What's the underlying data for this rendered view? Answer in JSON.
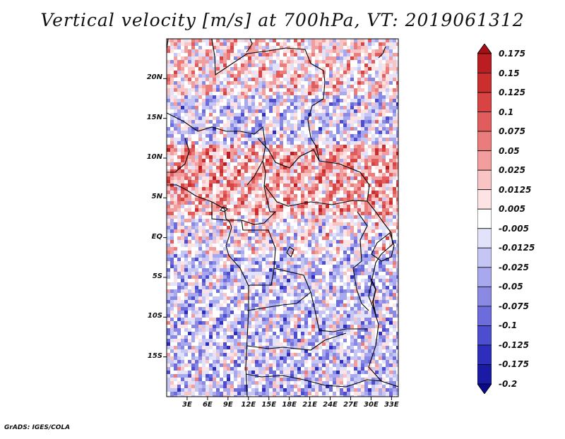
{
  "title": "Vertical velocity [m/s] at 700hPa, VT: 2019061312",
  "credit": "GrADS: IGES/COLA",
  "map": {
    "lon_range": [
      0,
      34
    ],
    "lat_range": [
      -20,
      25
    ],
    "lat_labels": [
      "20N",
      "15N",
      "10N",
      "5N",
      "EQ",
      "5S",
      "10S",
      "15S"
    ],
    "lat_values": [
      20,
      15,
      10,
      5,
      0,
      -5,
      -10,
      -15
    ],
    "lon_labels": [
      "3E",
      "6E",
      "9E",
      "12E",
      "15E",
      "18E",
      "21E",
      "24E",
      "27E",
      "30E",
      "33E"
    ],
    "lon_values": [
      3,
      6,
      9,
      12,
      15,
      18,
      21,
      24,
      27,
      30,
      33
    ]
  },
  "colorbar": {
    "labels": [
      "0.175",
      "0.15",
      "0.125",
      "0.1",
      "0.075",
      "0.05",
      "0.025",
      "0.0125",
      "0.005",
      "-0.005",
      "-0.0125",
      "-0.025",
      "-0.05",
      "-0.075",
      "-0.1",
      "-0.125",
      "-0.175",
      "-0.2"
    ],
    "colors": [
      "#a50f15",
      "#bb1e22",
      "#cb2e2e",
      "#d84444",
      "#e15d5d",
      "#ea7c7c",
      "#f29e9e",
      "#f8c4c4",
      "#fde3e3",
      "#ffffff",
      "#e2e2fb",
      "#c6c6f5",
      "#a8a8ee",
      "#8a8ae5",
      "#6c6cdc",
      "#4d4dcf",
      "#2e2ebd",
      "#1a1aa5",
      "#0a0a8a"
    ]
  }
}
